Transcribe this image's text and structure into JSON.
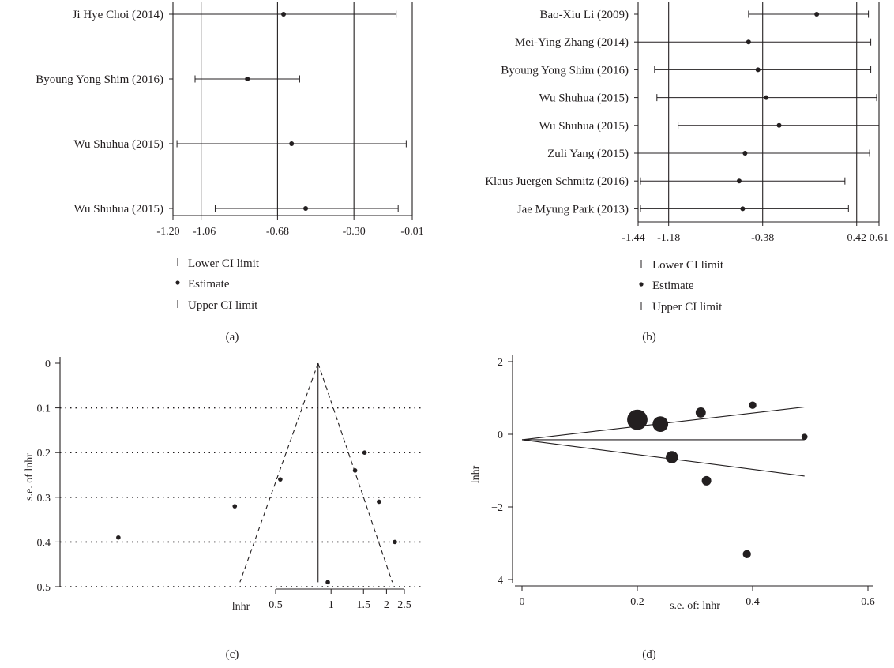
{
  "chart_data": [
    {
      "panel": "(a)",
      "type": "forest",
      "xlim": [
        -1.2,
        -0.01
      ],
      "x_ticks": [
        "-1.20",
        "-1.06",
        "-0.68",
        "-0.30",
        "-0.01"
      ],
      "x_tick_values": [
        -1.2,
        -1.06,
        -0.68,
        -0.3,
        -0.01
      ],
      "gridlines_at": [
        -1.06,
        -0.68,
        -0.3
      ],
      "studies": [
        {
          "label": "Ji Hye Choi (2014)",
          "lower": -1.2,
          "estimate": -0.65,
          "upper": -0.09
        },
        {
          "label": "Byoung Yong Shim (2016)",
          "lower": -1.09,
          "estimate": -0.83,
          "upper": -0.57
        },
        {
          "label": "Wu Shuhua (2015)",
          "lower": -1.18,
          "estimate": -0.61,
          "upper": -0.04
        },
        {
          "label": "Wu Shuhua (2015)",
          "lower": -0.99,
          "estimate": -0.54,
          "upper": -0.08
        }
      ],
      "legend": [
        "Lower CI limit",
        "Estimate",
        "Upper CI limit"
      ]
    },
    {
      "panel": "(b)",
      "type": "forest",
      "xlim": [
        -1.44,
        0.61
      ],
      "x_ticks": [
        "-1.44",
        "-1.18",
        "-0.38",
        "0.42",
        "0.61"
      ],
      "x_tick_values": [
        -1.44,
        -1.18,
        -0.38,
        0.42,
        0.61
      ],
      "gridlines_at": [
        -1.18,
        -0.38,
        0.42
      ],
      "studies": [
        {
          "label": "Bao-Xiu Li (2009)",
          "lower": -0.5,
          "estimate": 0.08,
          "upper": 0.52
        },
        {
          "label": "Mei-Ying Zhang (2014)",
          "lower": -1.44,
          "estimate": -0.5,
          "upper": 0.54
        },
        {
          "label": "Byoung Yong Shim (2016)",
          "lower": -1.3,
          "estimate": -0.42,
          "upper": 0.54
        },
        {
          "label": "Wu Shuhua (2015)",
          "lower": -1.28,
          "estimate": -0.35,
          "upper": 0.59
        },
        {
          "label": "Wu Shuhua (2015)",
          "lower": -1.1,
          "estimate": -0.24,
          "upper": 0.61
        },
        {
          "label": "Zuli Yang (2015)",
          "lower": -1.44,
          "estimate": -0.53,
          "upper": 0.53
        },
        {
          "label": "Klaus Juergen Schmitz (2016)",
          "lower": -1.42,
          "estimate": -0.58,
          "upper": 0.32
        },
        {
          "label": "Jae Myung Park (2013)",
          "lower": -1.42,
          "estimate": -0.55,
          "upper": 0.35
        }
      ],
      "legend": [
        "Lower CI limit",
        "Estimate",
        "Upper CI limit"
      ]
    },
    {
      "panel": "(c)",
      "type": "scatter",
      "subtype": "funnel",
      "xlabel": "lnhr",
      "ylabel": "s.e. of lnhr",
      "x_scale": "log",
      "x_ticks": [
        "0.5",
        "1",
        "1.5",
        "2",
        "2.5"
      ],
      "x_tick_values": [
        0.5,
        1,
        1.5,
        2,
        2.5
      ],
      "y_ticks": [
        "0",
        "0.1",
        "0.2",
        "0.3",
        "0.4",
        "0.5"
      ],
      "y_tick_values": [
        0,
        0.1,
        0.2,
        0.3,
        0.4,
        0.5
      ],
      "ylim": [
        0,
        0.5
      ],
      "y_reversed": true,
      "dotted_gridlines": [
        0.1,
        0.2,
        0.3,
        0.4,
        0.5
      ],
      "summary_estimate": 0.85,
      "funnel": {
        "apex": [
          0.85,
          0
        ],
        "base_left": [
          0.32,
          0.49
        ],
        "base_right": [
          2.15,
          0.49
        ]
      },
      "points": [
        {
          "x": 0.07,
          "y": 0.39
        },
        {
          "x": 0.3,
          "y": 0.32
        },
        {
          "x": 0.53,
          "y": 0.26
        },
        {
          "x": 0.96,
          "y": 0.49
        },
        {
          "x": 1.35,
          "y": 0.24
        },
        {
          "x": 1.52,
          "y": 0.2
        },
        {
          "x": 1.82,
          "y": 0.31
        },
        {
          "x": 2.22,
          "y": 0.4
        }
      ]
    },
    {
      "panel": "(d)",
      "type": "scatter",
      "subtype": "galbraith-style",
      "xlabel": "s.e. of: lnhr",
      "ylabel": "lnhr",
      "xlim": [
        0,
        0.6
      ],
      "ylim": [
        -4,
        2
      ],
      "x_ticks": [
        "0",
        "0.2",
        "0.4",
        "0.6"
      ],
      "x_tick_values": [
        0,
        0.2,
        0.4,
        0.6
      ],
      "y_ticks": [
        "2",
        "0",
        "−2",
        "−4"
      ],
      "y_tick_values": [
        2,
        0,
        -2,
        -4
      ],
      "lines": [
        {
          "from": [
            0,
            -0.15
          ],
          "to": [
            0.49,
            0.75
          ]
        },
        {
          "from": [
            0,
            -0.15
          ],
          "to": [
            0.49,
            -0.15
          ]
        },
        {
          "from": [
            0,
            -0.15
          ],
          "to": [
            0.49,
            -1.15
          ]
        }
      ],
      "points": [
        {
          "x": 0.2,
          "y": 0.4,
          "size": 3
        },
        {
          "x": 0.24,
          "y": 0.28,
          "size": 2.3
        },
        {
          "x": 0.31,
          "y": 0.6,
          "size": 1.5
        },
        {
          "x": 0.4,
          "y": 0.8,
          "size": 1.1
        },
        {
          "x": 0.49,
          "y": -0.07,
          "size": 0.9
        },
        {
          "x": 0.26,
          "y": -0.63,
          "size": 1.8
        },
        {
          "x": 0.32,
          "y": -1.28,
          "size": 1.4
        },
        {
          "x": 0.39,
          "y": -3.3,
          "size": 1.2
        }
      ]
    }
  ]
}
